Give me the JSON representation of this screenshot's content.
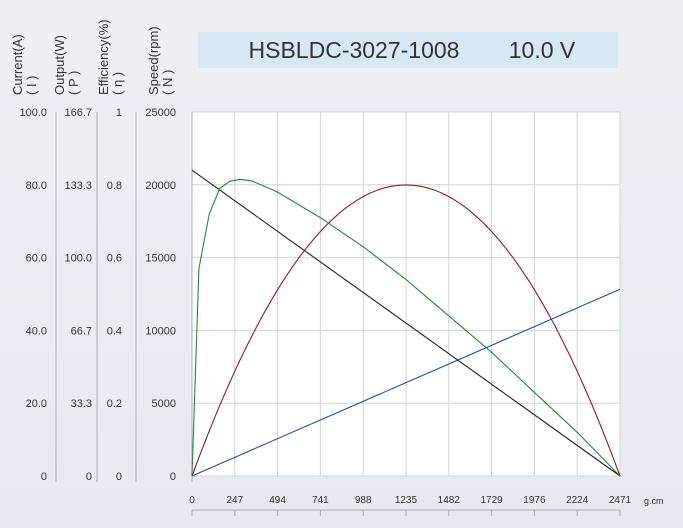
{
  "chart_data": {
    "type": "line",
    "title": "HSBLDC-3027-1008",
    "voltage": "10.0 V",
    "xlabel": "g.cm",
    "x_ticks": [
      "0",
      "247",
      "494",
      "741",
      "988",
      "1235",
      "1482",
      "1729",
      "1976",
      "2224",
      "2471"
    ],
    "x_range": [
      0,
      2471
    ],
    "axes": [
      {
        "id": "current",
        "label": "Current(A)",
        "symbol": "( I )",
        "range": [
          0,
          100
        ],
        "ticks": [
          "0",
          "20.0",
          "40.0",
          "60.0",
          "80.0",
          "100.0"
        ]
      },
      {
        "id": "output",
        "label": "Output(W)",
        "symbol": "( P )",
        "range": [
          0,
          166.7
        ],
        "ticks": [
          "0",
          "33.3",
          "66.7",
          "100.0",
          "133.3",
          "166.7"
        ]
      },
      {
        "id": "efficiency",
        "label": "Efficiency(%)",
        "symbol": "( η )",
        "range": [
          0,
          1
        ],
        "ticks": [
          "0",
          "0.2",
          "0.4",
          "0.6",
          "0.8",
          "1"
        ]
      },
      {
        "id": "speed",
        "label": "Speed(rpm)",
        "symbol": "( N )",
        "range": [
          0,
          25000
        ],
        "ticks": [
          "0",
          "5000",
          "10000",
          "15000",
          "20000",
          "25000"
        ]
      }
    ],
    "grid": true,
    "series": [
      {
        "name": "Current",
        "axis": "current",
        "color": "#2a4f9c",
        "x": [
          0,
          2471
        ],
        "y": [
          0,
          51.3
        ]
      },
      {
        "name": "Speed",
        "axis": "speed",
        "color": "#222222",
        "x": [
          0,
          2471
        ],
        "y": [
          21000,
          0
        ]
      },
      {
        "name": "Output",
        "axis": "output",
        "color": "#8b1e2b",
        "x": [
          0,
          247,
          494,
          741,
          988,
          1235,
          1482,
          1729,
          1976,
          2224,
          2471
        ],
        "y": [
          0,
          48.0,
          85.3,
          112.0,
          128.0,
          133.3,
          128.0,
          112.0,
          85.3,
          48.0,
          0
        ]
      },
      {
        "name": "Efficiency",
        "axis": "efficiency",
        "color": "#1e8a3c",
        "x": [
          0,
          40,
          100,
          160,
          220,
          280,
          350,
          494,
          741,
          988,
          1235,
          1482,
          1729,
          1976,
          2224,
          2471
        ],
        "y": [
          0,
          0.57,
          0.72,
          0.79,
          0.81,
          0.815,
          0.81,
          0.78,
          0.71,
          0.63,
          0.54,
          0.44,
          0.34,
          0.23,
          0.12,
          0
        ]
      }
    ]
  }
}
